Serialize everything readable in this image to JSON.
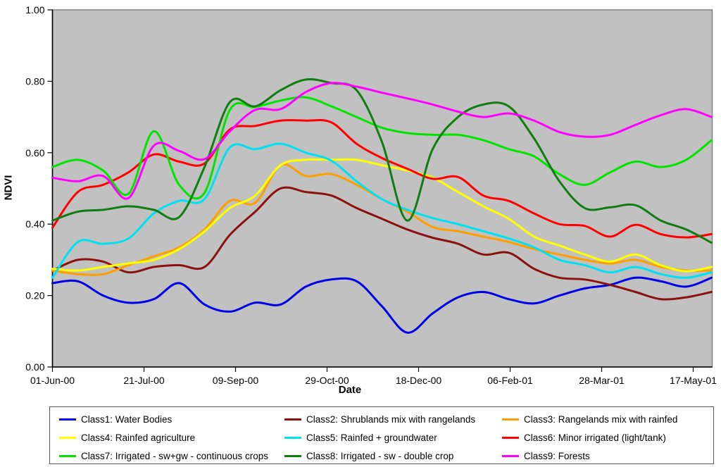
{
  "chart_data": {
    "type": "line",
    "title": "",
    "xlabel": "Date",
    "ylabel": "NDVI",
    "ylim": [
      0.0,
      1.0
    ],
    "ytick_labels": [
      "0.00",
      "0.20",
      "0.40",
      "0.60",
      "0.80",
      "1.00"
    ],
    "xtick_labels": [
      "01-Jun-00",
      "21-Jul-00",
      "09-Sep-00",
      "29-Oct-00",
      "18-Dec-00",
      "06-Feb-01",
      "28-Mar-01",
      "17-May-01"
    ],
    "grid": false,
    "legend_position": "bottom",
    "plot_bg_color": "#C1C1C1",
    "plot_border_color": "#808080",
    "axis_color": "#000000",
    "series": [
      {
        "name": "Class1: Water Bodies",
        "color": "#0000E6",
        "values": [
          0.235,
          0.24,
          0.2,
          0.18,
          0.19,
          0.235,
          0.175,
          0.155,
          0.18,
          0.175,
          0.225,
          0.245,
          0.24,
          0.17,
          0.096,
          0.15,
          0.195,
          0.21,
          0.19,
          0.178,
          0.2,
          0.22,
          0.23,
          0.25,
          0.24,
          0.225,
          0.25
        ]
      },
      {
        "name": "Class2: Shrublands mix with rangelands",
        "color": "#8B1111",
        "values": [
          0.27,
          0.3,
          0.295,
          0.265,
          0.28,
          0.285,
          0.28,
          0.37,
          0.435,
          0.5,
          0.49,
          0.48,
          0.445,
          0.415,
          0.385,
          0.362,
          0.345,
          0.315,
          0.32,
          0.275,
          0.25,
          0.245,
          0.23,
          0.21,
          0.19,
          0.195,
          0.21
        ]
      },
      {
        "name": "Class3: Rangelands mix with rainfed",
        "color": "#FF9E00",
        "values": [
          0.27,
          0.26,
          0.26,
          0.285,
          0.31,
          0.335,
          0.385,
          0.465,
          0.46,
          0.565,
          0.535,
          0.54,
          0.51,
          0.47,
          0.435,
          0.392,
          0.38,
          0.365,
          0.35,
          0.33,
          0.315,
          0.3,
          0.29,
          0.3,
          0.28,
          0.27,
          0.27
        ]
      },
      {
        "name": "Class4: Rainfed agriculture",
        "color": "#FFFF00",
        "values": [
          0.275,
          0.27,
          0.28,
          0.29,
          0.3,
          0.33,
          0.38,
          0.445,
          0.48,
          0.565,
          0.58,
          0.58,
          0.58,
          0.565,
          0.55,
          0.53,
          0.49,
          0.45,
          0.415,
          0.365,
          0.34,
          0.315,
          0.295,
          0.315,
          0.285,
          0.268,
          0.28
        ]
      },
      {
        "name": "Class5: Rainfed + groundwater",
        "color": "#00E0F0",
        "values": [
          0.25,
          0.35,
          0.345,
          0.36,
          0.43,
          0.465,
          0.47,
          0.615,
          0.61,
          0.625,
          0.6,
          0.578,
          0.52,
          0.47,
          0.44,
          0.417,
          0.4,
          0.38,
          0.36,
          0.335,
          0.3,
          0.285,
          0.265,
          0.28,
          0.26,
          0.25,
          0.265
        ]
      },
      {
        "name": "Class6: Minor irrigated (light/tank)",
        "color": "#FF0000",
        "values": [
          0.39,
          0.49,
          0.51,
          0.545,
          0.595,
          0.575,
          0.57,
          0.665,
          0.675,
          0.69,
          0.69,
          0.685,
          0.625,
          0.585,
          0.555,
          0.527,
          0.532,
          0.48,
          0.465,
          0.43,
          0.4,
          0.395,
          0.365,
          0.398,
          0.372,
          0.363,
          0.372
        ]
      },
      {
        "name": "Class7: Irrigated - sw+gw - continuous crops",
        "color": "#00E400",
        "values": [
          0.56,
          0.58,
          0.55,
          0.485,
          0.66,
          0.51,
          0.488,
          0.72,
          0.728,
          0.746,
          0.755,
          0.73,
          0.7,
          0.67,
          0.655,
          0.65,
          0.65,
          0.635,
          0.61,
          0.59,
          0.54,
          0.51,
          0.545,
          0.575,
          0.56,
          0.58,
          0.635
        ]
      },
      {
        "name": "Class8: Irrigated - sw - double crop",
        "color": "#0F7D0F",
        "values": [
          0.41,
          0.435,
          0.44,
          0.45,
          0.44,
          0.42,
          0.56,
          0.742,
          0.73,
          0.775,
          0.805,
          0.795,
          0.775,
          0.63,
          0.41,
          0.61,
          0.7,
          0.735,
          0.73,
          0.64,
          0.52,
          0.445,
          0.447,
          0.453,
          0.41,
          0.385,
          0.348
        ]
      },
      {
        "name": "Class9: Forests",
        "color": "#FF00FF",
        "values": [
          0.53,
          0.52,
          0.535,
          0.473,
          0.62,
          0.605,
          0.582,
          0.66,
          0.72,
          0.722,
          0.77,
          0.795,
          0.785,
          0.768,
          0.752,
          0.735,
          0.715,
          0.7,
          0.71,
          0.69,
          0.658,
          0.645,
          0.65,
          0.678,
          0.705,
          0.722,
          0.7
        ]
      }
    ]
  }
}
